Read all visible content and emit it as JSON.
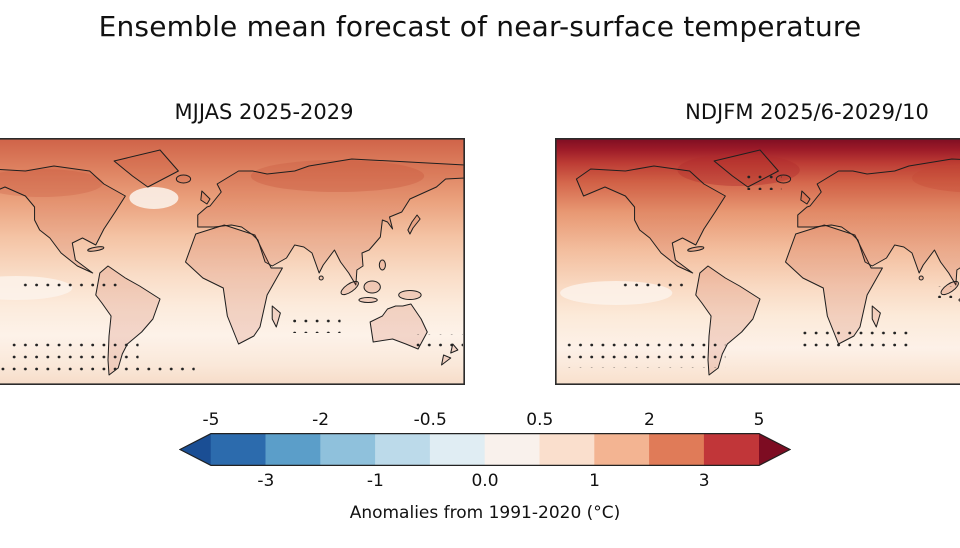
{
  "figure": {
    "title": "Ensemble mean forecast of near-surface temperature"
  },
  "panels": [
    {
      "title": "MJJAS 2025-2029"
    },
    {
      "title": "NDJFM 2025/6-2029/10"
    }
  ],
  "chart_data": {
    "type": "heatmap",
    "title": "Ensemble mean forecast of near-surface temperature",
    "panels": [
      {
        "label": "MJJAS 2025-2029",
        "description": "Global map (equirectangular, ~90N to 60S) of ensemble-mean near-surface temperature anomalies for May-September 2025-2029; widespread +0.5 to +3 C warming, strongest (+2 to +3 C) over northern high latitudes and continents, weakest (0 to +0.5 C) over Southern Ocean and eastern tropical Pacific; stippled areas mark regions of low signal"
      },
      {
        "label": "NDJFM 2025/6-2029/10",
        "description": "Global map (equirectangular, ~90N to 60S) of ensemble-mean near-surface temperature anomalies for November-March 2025/26-2029/30; Arctic band exceeds +5 C (dark red), northern mid-latitudes +1 to +3 C, tropics and Southern Hemisphere +0.5 to +1 C with stippling over southern oceans"
      }
    ],
    "colorbar": {
      "label": "Anomalies from 1991-2020 (°C)",
      "units": "°C",
      "boundaries": [
        -5,
        -3,
        -2,
        -1,
        -0.5,
        0,
        0.5,
        1,
        2,
        3,
        5
      ],
      "top_tick_labels": [
        "-5",
        "-2",
        "-0.5",
        "0.5",
        "2",
        "5"
      ],
      "bottom_tick_labels": [
        "-3",
        "-1",
        "0.0",
        "1",
        "3"
      ],
      "segment_colors": [
        "#2c6bad",
        "#5b9ec9",
        "#8fc1dc",
        "#bcdaea",
        "#e0edf3",
        "#f9f1ec",
        "#fadfcd",
        "#f3b492",
        "#e07b58",
        "#c13639"
      ],
      "under_arrow_color": "#1a4e94",
      "over_arrow_color": "#7d0c22"
    }
  }
}
